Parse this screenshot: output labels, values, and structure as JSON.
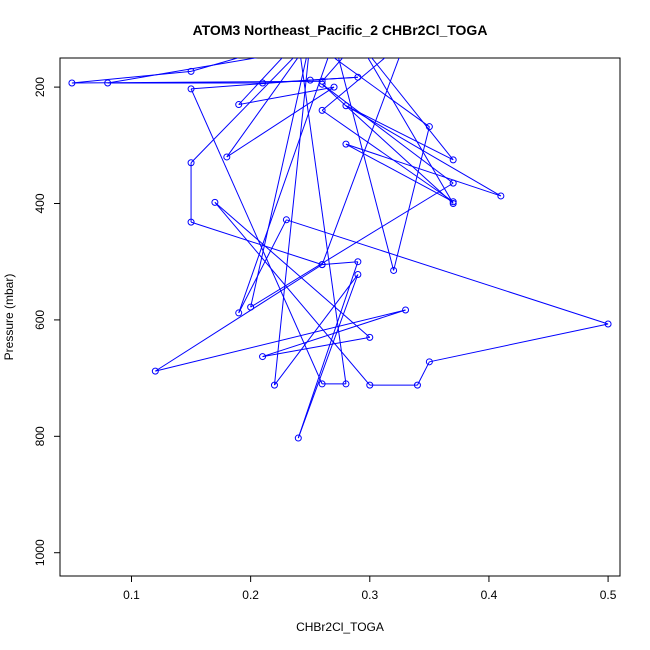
{
  "chart_data": {
    "type": "line",
    "title": "ATOM3 Northeast_Pacific_2 CHBr2Cl_TOGA",
    "xlabel": "CHBr2Cl_TOGA",
    "ylabel": "Pressure (mbar)",
    "xlim": [
      0.04,
      0.51
    ],
    "ylim": [
      1040,
      150
    ],
    "y_reversed": true,
    "x_ticks": [
      0.1,
      0.2,
      0.3,
      0.4,
      0.5
    ],
    "x_tick_labels": [
      "0.1",
      "0.2",
      "0.3",
      "0.4",
      "0.5"
    ],
    "y_ticks": [
      200,
      400,
      600,
      800,
      1000
    ],
    "y_tick_labels": [
      "200",
      "400",
      "600",
      "800",
      "1000"
    ],
    "grid": false,
    "series_color": "#0000ff",
    "marker": "open-circle",
    "series": [
      {
        "points": [
          [
            0.24,
            120
          ],
          [
            0.15,
            173
          ],
          [
            0.05,
            193
          ],
          [
            0.26,
            190
          ],
          [
            0.29,
            120
          ],
          [
            0.08,
            193
          ],
          [
            0.21,
            193
          ],
          [
            0.29,
            183
          ],
          [
            0.25,
            188
          ],
          [
            0.15,
            203
          ],
          [
            0.26,
            710
          ],
          [
            0.28,
            710
          ],
          [
            0.24,
            120
          ],
          [
            0.19,
            230
          ],
          [
            0.27,
            200
          ],
          [
            0.18,
            320
          ],
          [
            0.25,
            120
          ],
          [
            0.15,
            330
          ],
          [
            0.15,
            432
          ],
          [
            0.26,
            505
          ],
          [
            0.33,
            120
          ],
          [
            0.26,
            240
          ],
          [
            0.37,
            397
          ],
          [
            0.28,
            298
          ],
          [
            0.41,
            387
          ],
          [
            0.28,
            232
          ],
          [
            0.37,
            325
          ],
          [
            0.29,
            120
          ],
          [
            0.37,
            400
          ],
          [
            0.26,
            195
          ],
          [
            0.37,
            365
          ],
          [
            0.2,
            578
          ],
          [
            0.25,
            120
          ],
          [
            0.35,
            268
          ],
          [
            0.32,
            515
          ],
          [
            0.27,
            120
          ],
          [
            0.19,
            588
          ],
          [
            0.23,
            428
          ],
          [
            0.5,
            607
          ],
          [
            0.35,
            672
          ],
          [
            0.34,
            712
          ],
          [
            0.3,
            712
          ],
          [
            0.17,
            398
          ],
          [
            0.3,
            630
          ],
          [
            0.21,
            663
          ],
          [
            0.33,
            583
          ],
          [
            0.12,
            688
          ],
          [
            0.26,
            505
          ],
          [
            0.29,
            500
          ],
          [
            0.24,
            803
          ],
          [
            0.29,
            522
          ],
          [
            0.22,
            712
          ],
          [
            0.25,
            120
          ],
          [
            0.23,
            120
          ]
        ]
      }
    ]
  }
}
